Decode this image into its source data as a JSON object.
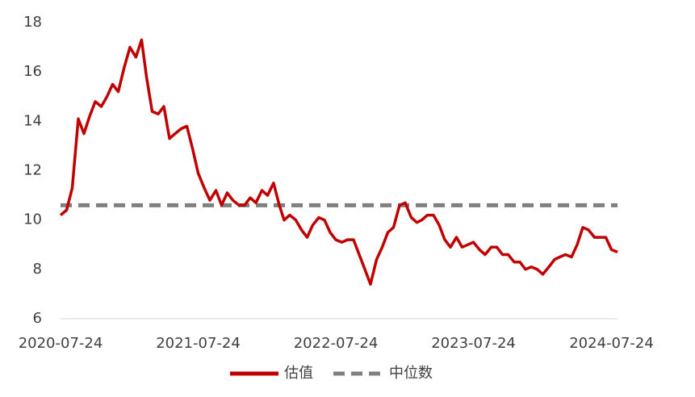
{
  "chart_data": {
    "type": "line",
    "x": [
      "2020-07-24",
      "2020-08-09",
      "2020-08-24",
      "2020-09-09",
      "2020-09-24",
      "2020-10-09",
      "2020-10-24",
      "2020-11-09",
      "2020-11-24",
      "2020-12-09",
      "2020-12-24",
      "2021-01-09",
      "2021-01-24",
      "2021-02-09",
      "2021-02-24",
      "2021-03-09",
      "2021-03-24",
      "2021-04-09",
      "2021-04-24",
      "2021-05-09",
      "2021-05-24",
      "2021-06-09",
      "2021-06-24",
      "2021-07-09",
      "2021-07-24",
      "2021-08-09",
      "2021-08-24",
      "2021-09-09",
      "2021-09-24",
      "2021-10-09",
      "2021-10-24",
      "2021-11-09",
      "2021-11-24",
      "2021-12-09",
      "2021-12-24",
      "2022-01-09",
      "2022-01-24",
      "2022-02-09",
      "2022-02-24",
      "2022-03-09",
      "2022-03-24",
      "2022-04-09",
      "2022-04-24",
      "2022-05-09",
      "2022-05-24",
      "2022-06-09",
      "2022-06-24",
      "2022-07-09",
      "2022-07-24",
      "2022-08-09",
      "2022-08-24",
      "2022-09-09",
      "2022-09-24",
      "2022-10-09",
      "2022-10-24",
      "2022-11-09",
      "2022-11-24",
      "2022-12-09",
      "2022-12-24",
      "2023-01-09",
      "2023-01-24",
      "2023-02-09",
      "2023-02-24",
      "2023-03-09",
      "2023-03-24",
      "2023-04-09",
      "2023-04-24",
      "2023-05-09",
      "2023-05-24",
      "2023-06-09",
      "2023-06-24",
      "2023-07-09",
      "2023-07-24",
      "2023-08-09",
      "2023-08-24",
      "2023-09-09",
      "2023-09-24",
      "2023-10-09",
      "2023-10-24",
      "2023-11-09",
      "2023-11-24",
      "2023-12-09",
      "2023-12-24",
      "2024-01-09",
      "2024-01-24",
      "2024-02-09",
      "2024-02-24",
      "2024-03-09",
      "2024-03-24",
      "2024-04-09",
      "2024-04-24",
      "2024-05-09",
      "2024-05-24",
      "2024-06-09",
      "2024-06-24",
      "2024-07-09",
      "2024-07-24",
      "2024-08-09"
    ],
    "series": [
      {
        "name": "估值",
        "color": "#c00000",
        "values": [
          10.2,
          10.4,
          11.3,
          14.1,
          13.5,
          14.2,
          14.8,
          14.6,
          15.0,
          15.5,
          15.2,
          16.2,
          17.0,
          16.6,
          17.3,
          15.8,
          14.4,
          14.3,
          14.6,
          13.3,
          13.5,
          13.7,
          13.8,
          12.9,
          11.9,
          11.3,
          10.8,
          11.2,
          10.6,
          11.1,
          10.8,
          10.6,
          10.6,
          10.9,
          10.7,
          11.2,
          11.0,
          11.5,
          10.6,
          10.0,
          10.2,
          10.0,
          9.6,
          9.3,
          9.8,
          10.1,
          10.0,
          9.5,
          9.2,
          9.1,
          9.2,
          9.2,
          8.6,
          8.0,
          7.4,
          8.4,
          8.9,
          9.5,
          9.7,
          10.6,
          10.7,
          10.1,
          9.9,
          10.0,
          10.2,
          10.2,
          9.8,
          9.2,
          8.9,
          9.3,
          8.9,
          9.0,
          9.1,
          8.8,
          8.6,
          8.9,
          8.9,
          8.6,
          8.6,
          8.3,
          8.3,
          8.0,
          8.1,
          8.0,
          7.8,
          8.1,
          8.4,
          8.5,
          8.6,
          8.5,
          9.0,
          9.7,
          9.6,
          9.3,
          9.3,
          9.3,
          8.8,
          8.7
        ]
      }
    ],
    "reference_line": {
      "name": "中位数",
      "color": "#7f7f7f",
      "value": 10.6
    },
    "xlim": [
      "2020-07-24",
      "2024-08-09"
    ],
    "xticks": [
      "2020-07-24",
      "2021-07-24",
      "2022-07-24",
      "2023-07-24",
      "2024-07-24"
    ],
    "ylim": [
      6,
      18
    ],
    "yticks": [
      6,
      8,
      10,
      12,
      14,
      16,
      18
    ],
    "grid": false
  }
}
